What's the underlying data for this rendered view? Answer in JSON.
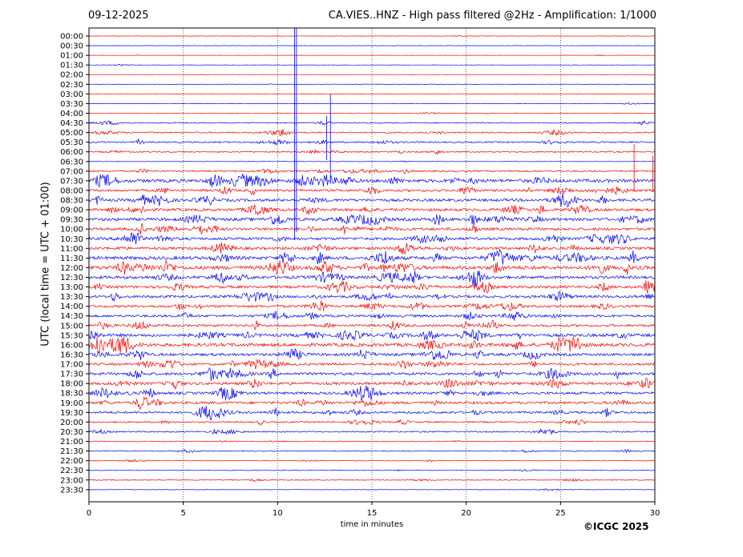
{
  "header": {
    "date": "09-12-2025",
    "title": "CA.VIES..HNZ - High pass filtered @2Hz - Amplification: 1/1000"
  },
  "footer": {
    "copyright": "©ICGC 2025"
  },
  "chart_data": {
    "type": "line",
    "title": "CA.VIES..HNZ - High pass filtered @2Hz - Amplification: 1/1000",
    "xlabel": "time in minutes",
    "ylabel": "UTC (local time = UTC + 01:00)",
    "xlim": [
      0,
      30
    ],
    "x_ticks": [
      0,
      5,
      10,
      15,
      20,
      25,
      30
    ],
    "rows": [
      "00:00",
      "00:30",
      "01:00",
      "01:30",
      "02:00",
      "02:30",
      "03:00",
      "03:30",
      "04:00",
      "04:30",
      "05:00",
      "05:30",
      "06:00",
      "06:30",
      "07:00",
      "07:30",
      "08:00",
      "08:30",
      "09:00",
      "09:30",
      "10:00",
      "10:30",
      "11:00",
      "11:30",
      "12:00",
      "12:30",
      "13:00",
      "13:30",
      "14:00",
      "14:30",
      "15:00",
      "15:30",
      "16:00",
      "16:30",
      "17:00",
      "17:30",
      "18:00",
      "18:30",
      "19:00",
      "19:30",
      "20:00",
      "20:30",
      "21:00",
      "21:30",
      "22:00",
      "22:30",
      "23:00",
      "23:30"
    ],
    "row_colors": [
      "#ff0000",
      "#0000ff"
    ],
    "noise_levels": [
      0.25,
      0.2,
      0.2,
      0.2,
      0.2,
      0.3,
      0.3,
      0.3,
      0.4,
      0.7,
      0.9,
      1.0,
      0.9,
      0.3,
      1.0,
      2.2,
      1.6,
      1.8,
      1.8,
      2.0,
      1.8,
      1.8,
      1.8,
      2.2,
      2.4,
      2.0,
      1.8,
      1.7,
      1.6,
      1.6,
      1.6,
      2.0,
      2.2,
      1.8,
      1.6,
      1.8,
      1.8,
      1.7,
      1.7,
      1.5,
      1.0,
      0.9,
      0.6,
      0.6,
      0.5,
      0.4,
      0.6,
      0.3
    ],
    "grid": true,
    "grid_style": "dotted vertical at 5-minute marks"
  }
}
